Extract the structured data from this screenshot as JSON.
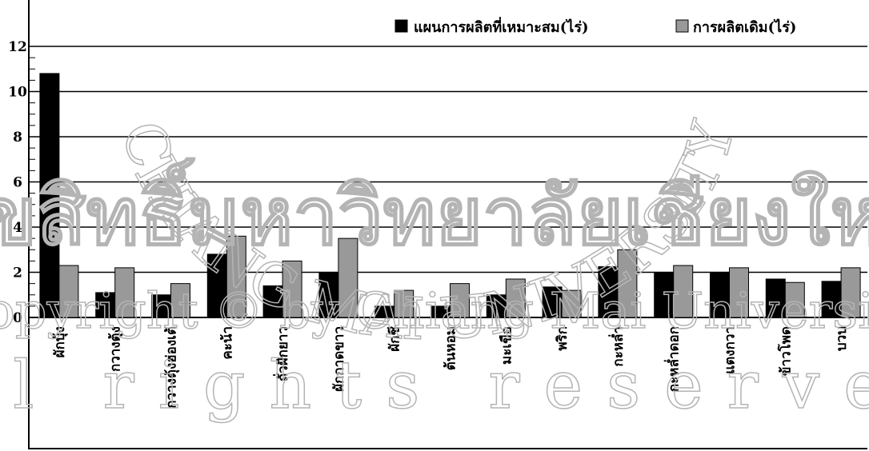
{
  "chart_data": {
    "type": "bar",
    "title": "",
    "xlabel": "",
    "ylabel": "",
    "ylim": [
      0,
      12
    ],
    "yticks": [
      "0",
      "2",
      "4",
      "6",
      "8",
      "10",
      "12"
    ],
    "grid": true,
    "legend_position": "top-right",
    "categories": [
      "ผักบุ้ง",
      "กวางตุ้ง",
      "กวางตุ้งฮ่องเต้",
      "คะน้า",
      "ถั่วฝักยาว",
      "ผักกาดขาว",
      "ผักชี",
      "ต้นหอม",
      "มะเขือ",
      "พริก",
      "กะหล่ำ",
      "กะหล่ำดอก",
      "แตงกวา",
      "ข้าวโพด",
      "บวบ"
    ],
    "series": [
      {
        "name": "แผนการผลิตที่เหมาะสม(ไร่)",
        "color": "#000000",
        "values": [
          10.8,
          1.1,
          1.0,
          2.8,
          1.4,
          2.0,
          0.5,
          0.5,
          1.0,
          1.35,
          2.25,
          2.0,
          2.0,
          1.7,
          1.6
        ]
      },
      {
        "name": "การผลิตเดิม(ไร่)",
        "color": "#999999",
        "values": [
          2.3,
          2.2,
          1.5,
          3.6,
          2.5,
          3.5,
          1.2,
          1.5,
          1.7,
          1.2,
          3.0,
          2.3,
          2.2,
          1.55,
          2.2
        ]
      }
    ]
  },
  "watermark": {
    "university_arc": "CHIANG MAI UNIVERSITY",
    "thai_line": "ลิขสิทธิ์มหาวิทยาลัยเชียงใหม่",
    "copyright_line": "Copyright © by Chiang Mai University",
    "rights_line": "All rights reserved",
    "color": "#b4b4b4"
  }
}
